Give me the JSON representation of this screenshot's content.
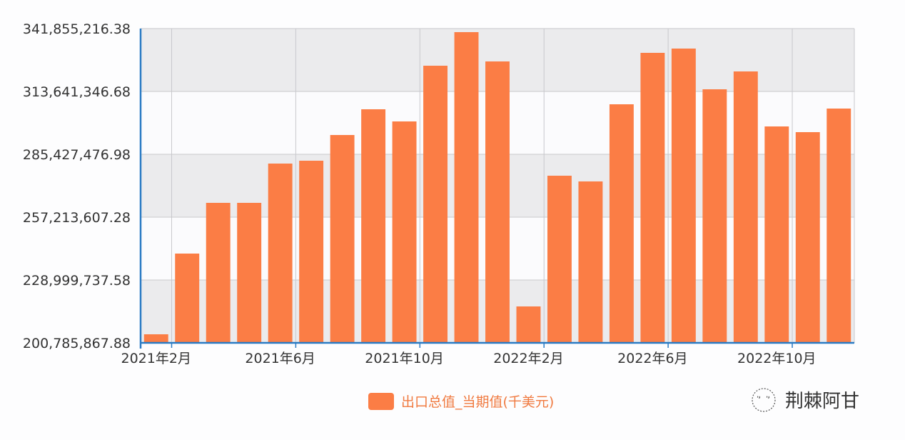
{
  "chart_data": {
    "type": "bar",
    "categories": [
      "2021-02",
      "2021-03",
      "2021-04",
      "2021-05",
      "2021-06",
      "2021-07",
      "2021-08",
      "2021-09",
      "2021-10",
      "2021-11",
      "2021-12",
      "2022-01",
      "2022-02",
      "2022-03",
      "2022-04",
      "2022-05",
      "2022-06",
      "2022-07",
      "2022-08",
      "2022-09",
      "2022-10",
      "2022-11",
      "2022-12"
    ],
    "x_tick_labels": [
      {
        "index": 0,
        "label": "2021年2月"
      },
      {
        "index": 4,
        "label": "2021年6月"
      },
      {
        "index": 8,
        "label": "2021年10月"
      },
      {
        "index": 12,
        "label": "2022年2月"
      },
      {
        "index": 16,
        "label": "2022年6月"
      },
      {
        "index": 20,
        "label": "2022年10月"
      }
    ],
    "series": [
      {
        "name": "出口总值_当期值(千美元)",
        "color": "#fb7d45",
        "values": [
          204630000,
          240860000,
          263630000,
          263630000,
          281260000,
          282540000,
          294080000,
          305630000,
          300180000,
          325180000,
          340260000,
          327110000,
          217140000,
          275810000,
          273250000,
          307870000,
          330960000,
          332880000,
          314600000,
          322620000,
          297930000,
          295370000,
          305950000
        ]
      }
    ],
    "y_tick_labels": [
      "200,785,867.88",
      "228,999,737.58",
      "257,213,607.28",
      "285,427,476.98",
      "313,641,346.68",
      "341,855,216.38"
    ],
    "ylim": [
      200785867.88,
      341855216.38
    ],
    "grid": true,
    "legend_position": "bottom",
    "axis_color": "#2a7bc4"
  },
  "watermark": "荆棘阿甘"
}
